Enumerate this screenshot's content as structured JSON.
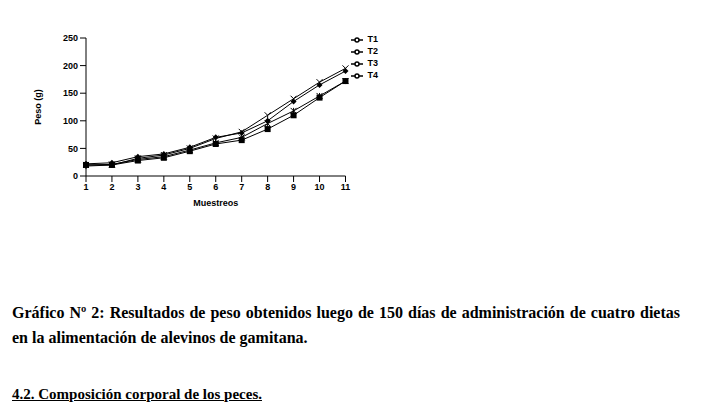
{
  "chart_data": {
    "type": "line",
    "x_label": "Muestreos",
    "y_label": "Peso (g)",
    "categories": [
      "1",
      "2",
      "3",
      "4",
      "5",
      "6",
      "7",
      "8",
      "9",
      "10",
      "11"
    ],
    "series": [
      {
        "name": "T1",
        "color": "#000000",
        "marker": "diamond",
        "line_style": "solid",
        "values": [
          22,
          24,
          35,
          40,
          52,
          70,
          78,
          100,
          135,
          165,
          190
        ]
      },
      {
        "name": "T2",
        "color": "#000000",
        "marker": "square",
        "line_style": "solid",
        "values": [
          20,
          20,
          28,
          33,
          45,
          58,
          65,
          85,
          110,
          142,
          172
        ]
      },
      {
        "name": "T3",
        "color": "#000000",
        "marker": "triangle",
        "line_style": "solid",
        "values": [
          18,
          20,
          32,
          38,
          50,
          68,
          80,
          110,
          140,
          170,
          195
        ]
      },
      {
        "name": "T4",
        "color": "#000000",
        "marker": "cross",
        "line_style": "solid",
        "values": [
          20,
          21,
          30,
          35,
          47,
          60,
          70,
          95,
          118,
          145,
          172
        ]
      }
    ],
    "ylim": [
      0,
      250
    ],
    "yticks": [
      0,
      50,
      100,
      150,
      200,
      250
    ],
    "grid": false,
    "legend": "right"
  },
  "document": {
    "caption": "Gráfico Nº 2: Resultados de peso obtenidos luego de 150 días de administración de cuatro dietas en la alimentación de alevinos de gamitana.",
    "heading": "4.2. Composición corporal de los peces."
  }
}
